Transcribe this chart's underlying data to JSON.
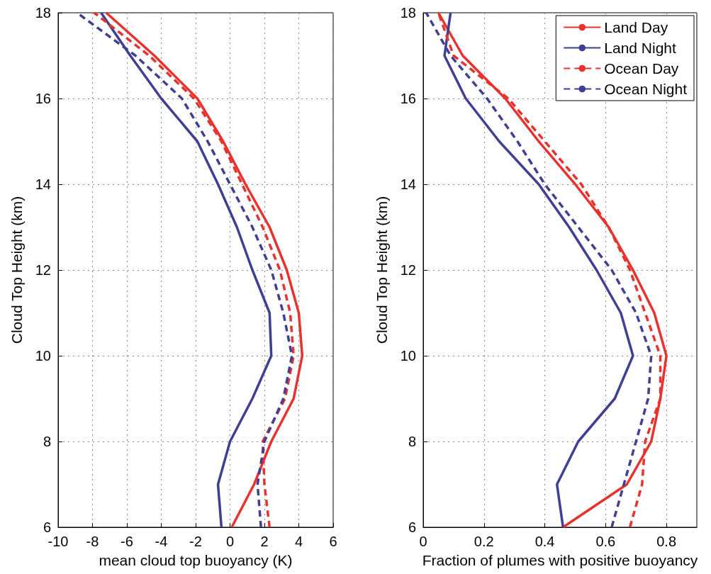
{
  "chart_data": [
    {
      "type": "line",
      "orientation": "horizontal",
      "xlabel": "mean cloud top buoyancy (K)",
      "ylabel": "Cloud Top Height (km)",
      "x": [
        6,
        7,
        8,
        9,
        10,
        11,
        12,
        13,
        14,
        15,
        16,
        17,
        18
      ],
      "xlim": [
        -10,
        6
      ],
      "xticks": [
        -10,
        -8,
        -6,
        -4,
        -2,
        0,
        2,
        4,
        6
      ],
      "ylim": [
        6,
        18
      ],
      "yticks": [
        6,
        8,
        10,
        12,
        14,
        16,
        18
      ],
      "grid": true,
      "legend": false,
      "marker": "none",
      "series": [
        {
          "color": "#e8322d",
          "line_style": "solid",
          "values": [
            0.1,
            1.4,
            2.4,
            3.7,
            4.2,
            4.0,
            3.3,
            2.3,
            0.9,
            -0.4,
            -1.9,
            -4.4,
            -7.2
          ]
        },
        {
          "color": "#3f3f96",
          "line_style": "solid",
          "values": [
            -0.5,
            -0.7,
            0.0,
            1.3,
            2.4,
            2.3,
            1.3,
            0.4,
            -0.7,
            -1.9,
            -4.0,
            -5.8,
            -7.5
          ]
        },
        {
          "color": "#e8322d",
          "line_style": "dashed",
          "values": [
            2.3,
            2.0,
            1.9,
            3.2,
            3.7,
            3.5,
            2.9,
            1.9,
            0.7,
            -0.5,
            -2.1,
            -4.7,
            -7.9
          ]
        },
        {
          "color": "#3f3f96",
          "line_style": "dashed",
          "values": [
            1.8,
            1.6,
            2.0,
            3.1,
            3.6,
            3.1,
            2.4,
            1.3,
            0.0,
            -1.3,
            -2.8,
            -5.5,
            -8.9
          ]
        }
      ]
    },
    {
      "type": "line",
      "orientation": "horizontal",
      "xlabel": "Fraction of plumes with positive buoyancy",
      "ylabel": "Cloud Top Height (km)",
      "x": [
        6,
        7,
        8,
        9,
        10,
        11,
        12,
        13,
        14,
        15,
        16,
        17,
        18
      ],
      "xlim": [
        0,
        0.9
      ],
      "xticks": [
        0,
        0.2,
        0.4,
        0.6,
        0.8
      ],
      "ylim": [
        6,
        18
      ],
      "yticks": [
        6,
        8,
        10,
        12,
        14,
        16,
        18
      ],
      "grid": true,
      "legend": "top right",
      "marker": "none",
      "series": [
        {
          "name": "Land Day",
          "color": "#e8322d",
          "line_style": "solid",
          "values": [
            0.46,
            0.67,
            0.75,
            0.78,
            0.8,
            0.76,
            0.69,
            0.61,
            0.5,
            0.38,
            0.27,
            0.13,
            0.05
          ]
        },
        {
          "name": "Land Night",
          "color": "#3f3f96",
          "line_style": "solid",
          "values": [
            0.46,
            0.44,
            0.51,
            0.63,
            0.69,
            0.65,
            0.57,
            0.48,
            0.38,
            0.25,
            0.14,
            0.07,
            0.09
          ]
        },
        {
          "name": "Ocean Day",
          "color": "#e8322d",
          "line_style": "dashed",
          "values": [
            0.68,
            0.72,
            0.73,
            0.78,
            0.78,
            0.73,
            0.68,
            0.61,
            0.52,
            0.4,
            0.28,
            0.1,
            0.05
          ]
        },
        {
          "name": "Ocean Night",
          "color": "#3f3f96",
          "line_style": "dashed",
          "values": [
            0.62,
            0.66,
            0.7,
            0.74,
            0.75,
            0.7,
            0.62,
            0.51,
            0.4,
            0.31,
            0.21,
            0.09,
            0.01
          ]
        }
      ]
    }
  ]
}
